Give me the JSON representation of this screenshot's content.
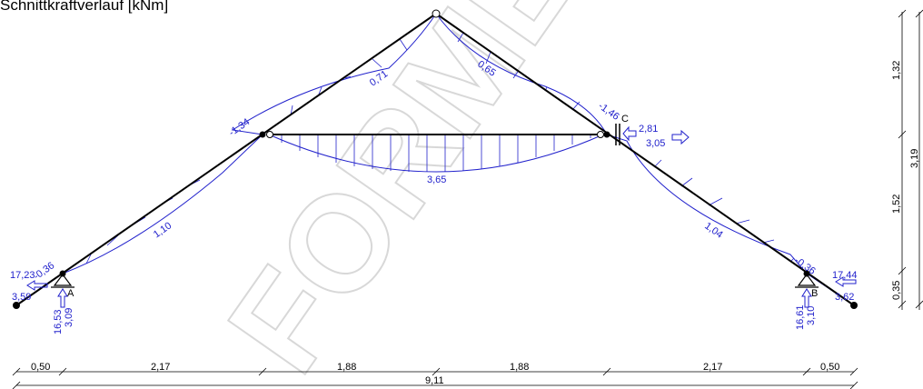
{
  "title": "Schnittkraftverlauf [kNm]",
  "watermark": "FORMET-",
  "colors": {
    "moment": "#2222cc",
    "structure": "#000000",
    "watermark": "#d8d8d8"
  },
  "moment_labels": {
    "left_lower": "1,10",
    "left_upper": "0,71",
    "right_upper": "0,65",
    "right_lower": "1,04",
    "tie_mid": "3,65",
    "knee_left": "-1,34",
    "knee_right": "-1,46",
    "support_left": "-0,36",
    "support_right": "-0,36",
    "tip_left": "3,59",
    "tip_right": "3,62"
  },
  "supports": {
    "A": {
      "label": "A",
      "h": "17,23",
      "v1": "16,53",
      "v2": "3,09"
    },
    "B": {
      "label": "B",
      "h": "17,44",
      "v1": "16,61",
      "v2": "3,10"
    },
    "C": {
      "label": "C",
      "f1": "2,81",
      "f2": "3,05"
    }
  },
  "dims_bottom": [
    "0,50",
    "2,17",
    "1,88",
    "1,88",
    "2,17",
    "0,50"
  ],
  "dim_total": "9,11",
  "dims_right": [
    "1,32",
    "1,52",
    "0,35"
  ],
  "dim_right_total": "3,19"
}
